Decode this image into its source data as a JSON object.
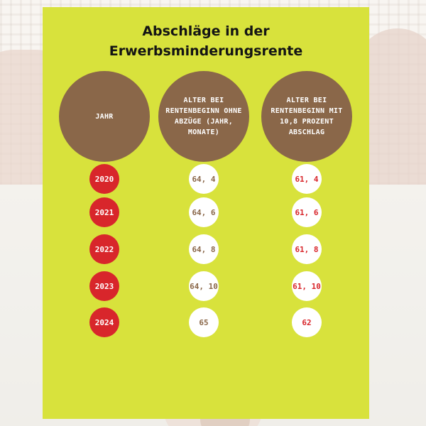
{
  "title_lines": [
    "Abschläge in der",
    "Erwerbsminderungsrente"
  ],
  "headers": [
    "JAHR",
    "ALTER BEI RENTENBEGINN OHNE ABZÜGE (JAHR, MONATE)",
    "ALTER BEI RENTENBEGINN MIT 10,8 PROZENT ABSCHLAG"
  ],
  "rows": [
    {
      "year": "2020",
      "age_without": "64, 4",
      "age_with": "61, 4"
    },
    {
      "year": "2021",
      "age_without": "64, 6",
      "age_with": "61, 6"
    },
    {
      "year": "2022",
      "age_without": "64, 8",
      "age_with": "61, 8"
    },
    {
      "year": "2023",
      "age_without": "64, 10",
      "age_with": "61, 10"
    },
    {
      "year": "2024",
      "age_without": "65",
      "age_with": "62"
    }
  ],
  "colors": {
    "panel": "#d8e23c",
    "header_circle": "#8a6749",
    "year_circle": "#d8262b",
    "value_circle": "#ffffff"
  }
}
